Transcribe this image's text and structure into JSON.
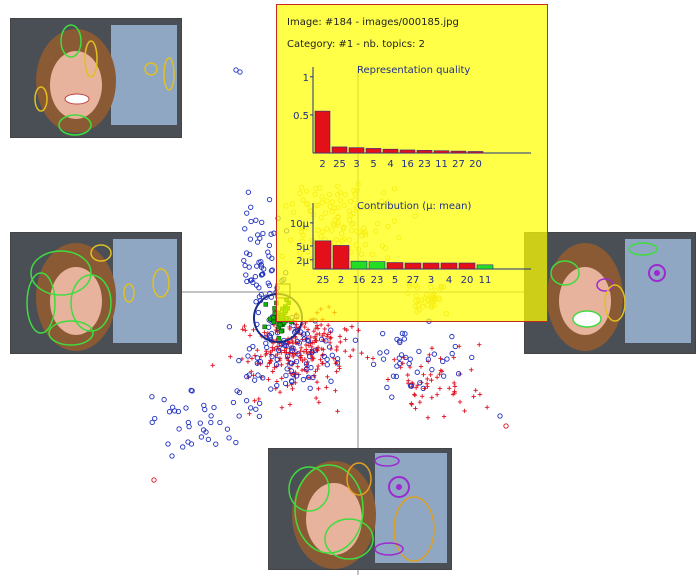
{
  "tooltip": {
    "image_line": "Image: #184 - images/000185.jpg",
    "category_line": "Category: #1 - nb. topics: 2"
  },
  "colors": {
    "tooltip_bg": "#ffff00",
    "tooltip_border": "#c8261e",
    "bar_red": "#e3101a",
    "bar_green": "#22dd22",
    "axis_blue": "#1f2f86",
    "series_blue": "#2030c0",
    "series_red": "#e01020",
    "series_yellow": "#e0c040",
    "series_green": "#10b010"
  },
  "chart_data": [
    {
      "type": "bar",
      "title": "Representation quality",
      "categories": [
        "2",
        "25",
        "3",
        "5",
        "4",
        "16",
        "23",
        "11",
        "27",
        "20"
      ],
      "values": [
        0.55,
        0.08,
        0.07,
        0.06,
        0.05,
        0.04,
        0.035,
        0.03,
        0.025,
        0.02
      ],
      "y_ticks": [
        "1",
        "0.5"
      ],
      "ylim": [
        0,
        1.05
      ],
      "bar_colors": [
        "red",
        "red",
        "red",
        "red",
        "red",
        "red",
        "red",
        "red",
        "red",
        "red"
      ]
    },
    {
      "type": "bar",
      "title": "Contribution (µ: mean)",
      "categories": [
        "25",
        "2",
        "16",
        "23",
        "5",
        "27",
        "3",
        "4",
        "20",
        "11"
      ],
      "values": [
        6.1,
        5.1,
        1.7,
        1.6,
        1.4,
        1.3,
        1.3,
        1.3,
        1.3,
        0.9
      ],
      "y_ticks": [
        "10µ",
        "5µ",
        "2µ"
      ],
      "ylim": [
        0,
        13
      ],
      "bar_colors": [
        "red",
        "red",
        "green",
        "green",
        "red",
        "red",
        "red",
        "red",
        "red",
        "green"
      ]
    }
  ],
  "thumbnails": [
    {
      "name": "top-left",
      "caption": ""
    },
    {
      "name": "left",
      "caption": ""
    },
    {
      "name": "right",
      "caption": ""
    },
    {
      "name": "bottom",
      "caption": ""
    }
  ]
}
